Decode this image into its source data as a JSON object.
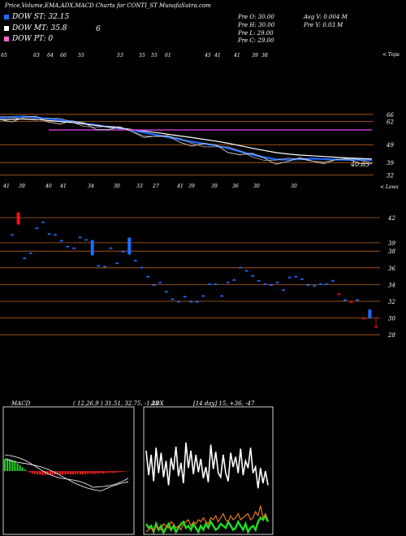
{
  "header": {
    "title": "Price,Volume,EMA,ADX,MACD Charts for CONTI_ST MunafaSutra.com"
  },
  "legend": [
    {
      "label": "DOW ST: 32.15",
      "color": "#1e6cff"
    },
    {
      "label": "DOW MT: 35.8",
      "color": "#ffffff"
    },
    {
      "label": "DOW PT: 0",
      "color": "#ff66cc"
    }
  ],
  "legend_extra": "6",
  "ohlc": {
    "open": "Pre  O: 30.00",
    "high": "Pre  H: 30.00",
    "low": "Pre  L: 29.00",
    "close": "Pre  C: 29.00"
  },
  "volume_info": {
    "avg": "Avg V: 0.004  M",
    "pre": "Pre  V: 0.03 M"
  },
  "panel_labels": {
    "top": "< Tops",
    "bottom": "< Lows"
  },
  "tops_ticks": [
    "65",
    "63",
    "64",
    "66",
    "55",
    "53",
    "55",
    "55",
    "61",
    "45",
    "41",
    "41",
    "39",
    "38"
  ],
  "lows_ticks": [
    "41",
    "39",
    "40",
    "41",
    "34",
    "30",
    "33",
    "27",
    "41",
    "39",
    "39",
    "36",
    "30",
    "30"
  ],
  "marker_label": "40.85",
  "price_axis": [
    "66",
    "62",
    "49",
    "39",
    "32"
  ],
  "candle_axis": [
    "42",
    "39",
    "38",
    "36",
    "34",
    "32",
    "30",
    "28"
  ],
  "macd": {
    "label": "MACD",
    "params": "( 12,26,9 ) 31.51, 32.75, -1.24"
  },
  "adx": {
    "label": "ADX",
    "params": "[14 day] 15, +36, -47"
  },
  "colors": {
    "ema_short": "#1e6cff",
    "ema_long": "#ffffff",
    "dow_pt": "#c838c8",
    "grid": "#b8631e",
    "up": "#1e6cff",
    "down": "#ff1010",
    "macd_pos": "#22cc22",
    "macd_neg": "#ff2222",
    "adx_green": "#22dd22",
    "adx_orange": "#e07818"
  },
  "chart_data": [
    {
      "type": "line",
      "title": "Price,Volume,EMA,ADX,MACD Charts for CONTI_ST MunafaSutra.com",
      "series": [
        {
          "name": "DOW ST: 32.15",
          "values": [
            64.0,
            64.5,
            64.8,
            64.2,
            63.6,
            62.9,
            62.0,
            61.0,
            60.0,
            59.0,
            58.2,
            57.0,
            55.8,
            54.5,
            53.2,
            51.9,
            50.7,
            49.6,
            48.5,
            47.0,
            45.2,
            43.5,
            42.0,
            40.8,
            40.6,
            40.9,
            41.2,
            41.0,
            40.7,
            40.5,
            40.6,
            40.4
          ]
        },
        {
          "name": "DOW MT: 35.8",
          "values": [
            63.0,
            63.2,
            63.4,
            63.1,
            62.6,
            62.0,
            61.4,
            60.6,
            59.8,
            59.0,
            58.3,
            57.5,
            56.7,
            55.8,
            54.8,
            53.9,
            53.0,
            52.0,
            51.0,
            49.8,
            48.5,
            47.1,
            45.8,
            44.6,
            43.8,
            43.2,
            42.8,
            42.4,
            42.0,
            41.6,
            41.3,
            41.0
          ]
        },
        {
          "name": "DOW PT: 0",
          "values": [
            56.5,
            56.5,
            56.5,
            56.5,
            56.5,
            56.5,
            56.5,
            56.5,
            56.5,
            56.5,
            56.5,
            56.5,
            56.5,
            56.5,
            56.5,
            56.5,
            56.5,
            56.5,
            56.5,
            56.5,
            56.5,
            56.5,
            56.5,
            56.5,
            56.5,
            56.5,
            56.5,
            56.5,
            56.5,
            56.5,
            56.5,
            56.5
          ]
        }
      ],
      "ylim": [
        32,
        70
      ],
      "yticks": [
        66,
        62,
        49,
        39,
        32
      ]
    },
    {
      "type": "bar",
      "categories": [
        "1",
        "2",
        "3",
        "4",
        "5",
        "6",
        "7",
        "8",
        "9",
        "10",
        "11",
        "12",
        "13",
        "14",
        "15",
        "16",
        "17",
        "18",
        "19",
        "20",
        "21",
        "22",
        "23",
        "24",
        "25",
        "26",
        "27",
        "28",
        "29",
        "30",
        "31",
        "32",
        "33",
        "34",
        "35",
        "36",
        "37",
        "38",
        "39",
        "40",
        "41",
        "42",
        "43",
        "44",
        "45",
        "46",
        "47",
        "48",
        "49",
        "50",
        "51",
        "52",
        "53",
        "54",
        "55",
        "56",
        "57",
        "58",
        "59",
        "60"
      ],
      "series": [
        {
          "name": "open",
          "values": [
            40.0,
            42.6,
            37.2,
            37.8,
            40.8,
            41.5,
            40.1,
            40.0,
            39.3,
            38.6,
            38.4,
            39.7,
            39.4,
            39.3,
            36.3,
            36.2,
            38.4,
            36.6,
            38.0,
            39.6,
            36.9,
            36.1,
            35.0,
            34.0,
            34.3,
            33.2,
            32.3,
            32.0,
            32.6,
            32.0,
            32.0,
            32.7,
            34.1,
            34.1,
            32.7,
            34.3,
            34.6,
            36.1,
            35.7,
            35.1,
            34.5,
            34.1,
            34.0,
            34.3,
            33.4,
            34.9,
            35.0,
            34.7,
            34.0,
            33.9,
            34.1,
            34.1,
            34.5,
            32.9,
            32.2,
            32.0,
            32.2,
            30.0,
            30.0,
            29.0
          ]
        },
        {
          "name": "close",
          "values": [
            40.0,
            41.2,
            37.2,
            37.8,
            40.8,
            41.5,
            40.1,
            40.0,
            39.3,
            38.6,
            38.4,
            39.7,
            39.4,
            37.5,
            36.3,
            36.2,
            38.4,
            36.6,
            38.0,
            37.6,
            36.9,
            36.1,
            35.0,
            34.0,
            34.3,
            33.2,
            32.3,
            32.0,
            32.6,
            32.0,
            32.0,
            32.7,
            34.1,
            34.1,
            32.7,
            34.3,
            34.6,
            36.1,
            35.7,
            35.1,
            34.5,
            34.1,
            34.0,
            34.3,
            33.4,
            34.9,
            35.0,
            34.7,
            34.0,
            33.9,
            34.1,
            34.1,
            34.5,
            32.9,
            32.2,
            32.0,
            32.2,
            30.0,
            31.0,
            29.0
          ]
        },
        {
          "name": "high",
          "values": [
            40.0,
            42.6,
            37.2,
            37.8,
            40.8,
            41.5,
            40.1,
            40.0,
            39.3,
            38.6,
            38.4,
            39.7,
            39.4,
            39.3,
            36.3,
            36.2,
            38.4,
            36.6,
            38.0,
            39.6,
            36.9,
            36.1,
            35.0,
            34.0,
            34.3,
            33.2,
            32.3,
            32.0,
            32.6,
            32.0,
            32.0,
            32.7,
            34.1,
            34.1,
            32.7,
            34.3,
            34.6,
            36.1,
            35.7,
            35.1,
            34.5,
            34.1,
            34.0,
            34.3,
            33.4,
            34.9,
            35.0,
            34.7,
            34.0,
            33.9,
            34.1,
            34.1,
            34.5,
            32.9,
            32.2,
            32.0,
            32.2,
            30.0,
            31.0,
            30.0
          ]
        },
        {
          "name": "low",
          "values": [
            40.0,
            41.2,
            37.2,
            37.8,
            40.8,
            41.5,
            40.1,
            40.0,
            39.3,
            38.6,
            38.4,
            39.7,
            39.4,
            37.5,
            36.3,
            36.2,
            38.4,
            36.6,
            38.0,
            37.6,
            36.9,
            36.1,
            35.0,
            34.0,
            34.3,
            33.2,
            32.3,
            32.0,
            32.6,
            32.0,
            32.0,
            32.7,
            34.1,
            34.1,
            32.7,
            34.3,
            34.6,
            36.1,
            35.7,
            35.1,
            34.5,
            34.1,
            34.0,
            34.3,
            33.4,
            34.9,
            35.0,
            34.7,
            34.0,
            33.9,
            34.1,
            34.1,
            34.5,
            32.9,
            32.2,
            32.0,
            32.2,
            30.0,
            30.0,
            29.0
          ]
        }
      ],
      "ylim": [
        27,
        43
      ],
      "yticks": [
        42,
        39,
        38,
        36,
        34,
        32,
        30,
        28
      ]
    },
    {
      "type": "bar",
      "title": "MACD ( 12,26,9 ) 31.51, 32.75, -1.24",
      "categories": [
        "1",
        "2",
        "3",
        "4",
        "5",
        "6",
        "7",
        "8",
        "9",
        "10",
        "11",
        "12",
        "13",
        "14",
        "15",
        "16",
        "17",
        "18",
        "19",
        "20",
        "21",
        "22",
        "23",
        "24",
        "25",
        "26",
        "27",
        "28",
        "29",
        "30",
        "31",
        "32",
        "33",
        "34",
        "35",
        "36",
        "37",
        "38",
        "39",
        "40",
        "41",
        "42",
        "43",
        "44",
        "45",
        "46",
        "47",
        "48",
        "49",
        "50"
      ],
      "series": [
        {
          "name": "histogram",
          "values": [
            4.5,
            4.8,
            4.6,
            4.2,
            3.9,
            3.0,
            2.2,
            1.4,
            0.6,
            -0.2,
            -0.6,
            -0.9,
            -1.1,
            -1.3,
            -1.4,
            -1.5,
            -1.5,
            -1.4,
            -1.4,
            -1.5,
            -1.4,
            -1.3,
            -1.4,
            -1.4,
            -1.3,
            -1.2,
            -1.3,
            -1.3,
            -1.2,
            -1.1,
            -1.2,
            -1.3,
            -1.2,
            -1.1,
            -1.0,
            -1.1,
            -1.1,
            -0.9,
            -0.8,
            -0.9,
            -0.8,
            -0.7,
            -0.6,
            -0.7,
            -0.6,
            -0.5,
            -0.4,
            -0.3,
            -0.2,
            -0.1
          ]
        }
      ],
      "ylim": [
        -6,
        6
      ]
    },
    {
      "type": "line",
      "title": "ADX [14 day] 15, +36, -47",
      "series": [
        {
          "name": "ADX",
          "values": [
            52,
            28,
            48,
            22,
            55,
            30,
            50,
            26,
            42,
            18,
            45,
            33,
            56,
            27,
            40,
            20,
            60,
            35,
            52,
            29,
            48,
            31,
            44,
            25,
            36,
            21,
            58,
            34,
            51,
            30,
            26,
            48,
            30,
            22,
            50,
            36,
            46,
            30,
            54,
            28,
            42,
            35,
            55,
            30,
            36,
            15,
            35,
            20,
            32,
            18
          ]
        },
        {
          "name": "+DI",
          "values": [
            -20,
            -24,
            -22,
            -28,
            -20,
            -26,
            -22,
            -30,
            -24,
            -20,
            -26,
            -22,
            -28,
            -24,
            -20,
            -18,
            -24,
            -22,
            -26,
            -20,
            -24,
            -28,
            -22,
            -26,
            -20,
            -24,
            -18,
            -22,
            -26,
            -24,
            -20,
            -22,
            -24,
            -18,
            -22,
            -26,
            -24,
            -18,
            -22,
            -26,
            -20,
            -28,
            -24,
            -22,
            -26,
            -18,
            -14,
            -16,
            -12,
            -18
          ]
        },
        {
          "name": "-DI",
          "values": [
            -28,
            -26,
            -24,
            -28,
            -22,
            -24,
            -26,
            -20,
            -22,
            -24,
            -18,
            -20,
            -24,
            -22,
            -26,
            -20,
            -18,
            -16,
            -22,
            -18,
            -20,
            -16,
            -18,
            -14,
            -18,
            -20,
            -14,
            -16,
            -12,
            -18,
            -14,
            -10,
            -16,
            -18,
            -12,
            -16,
            -14,
            -10,
            -16,
            -14,
            -12,
            -10,
            -16,
            -14,
            -8,
            -12,
            -2,
            -14,
            -10,
            -16
          ]
        }
      ],
      "ylim": [
        -60,
        80
      ]
    }
  ]
}
